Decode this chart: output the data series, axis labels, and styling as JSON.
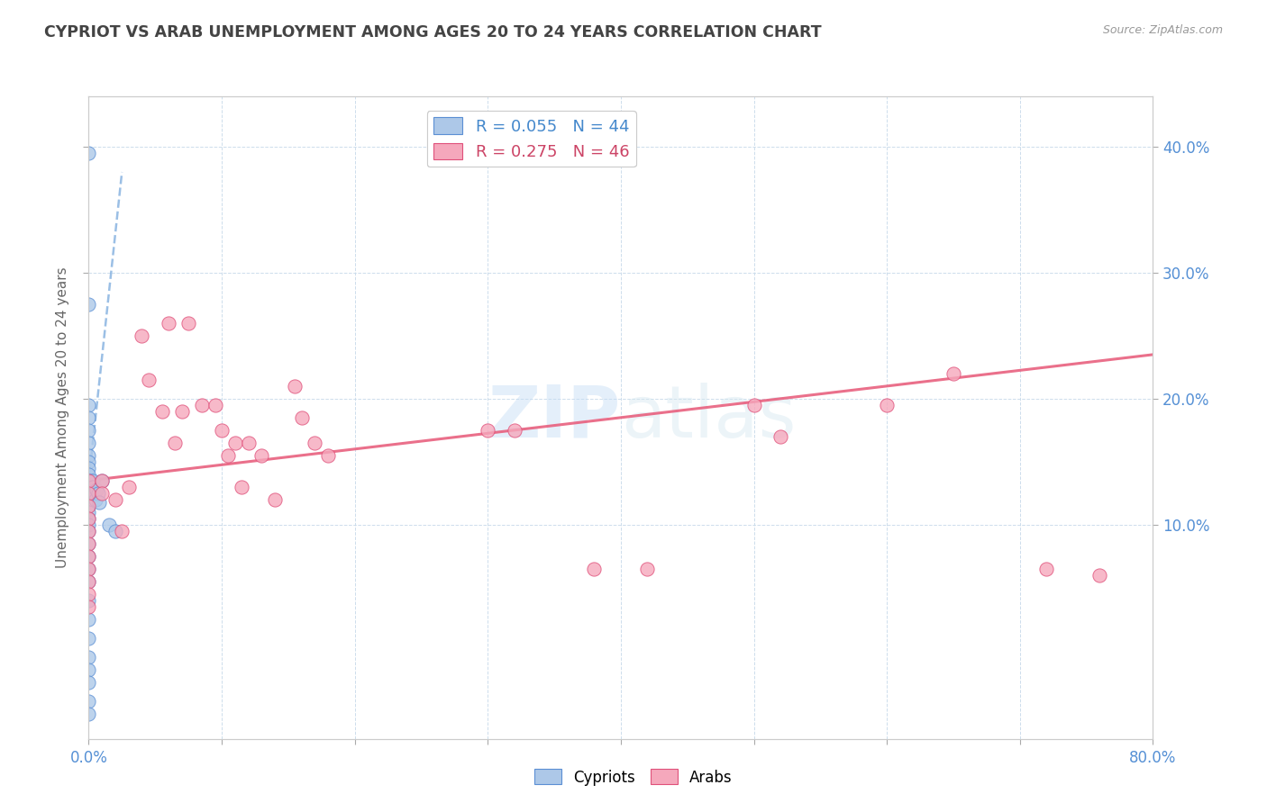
{
  "title": "CYPRIOT VS ARAB UNEMPLOYMENT AMONG AGES 20 TO 24 YEARS CORRELATION CHART",
  "source": "Source: ZipAtlas.com",
  "ylabel": "Unemployment Among Ages 20 to 24 years",
  "xlim": [
    0.0,
    0.8
  ],
  "ylim": [
    -0.07,
    0.44
  ],
  "xticks": [
    0.0,
    0.1,
    0.2,
    0.3,
    0.4,
    0.5,
    0.6,
    0.7,
    0.8
  ],
  "xticklabels": [
    "0.0%",
    "",
    "",
    "",
    "",
    "",
    "",
    "",
    "80.0%"
  ],
  "yticks": [
    0.1,
    0.2,
    0.3,
    0.4
  ],
  "yticklabels": [
    "10.0%",
    "20.0%",
    "30.0%",
    "40.0%"
  ],
  "legend_blue_label": "R = 0.055   N = 44",
  "legend_pink_label": "R = 0.275   N = 46",
  "blue_color": "#adc8e8",
  "pink_color": "#f5a8bc",
  "blue_edge_color": "#5b8fd4",
  "pink_edge_color": "#e0507a",
  "blue_line_color": "#7aaadd",
  "pink_line_color": "#e8607e",
  "watermark_zip": "ZIP",
  "watermark_atlas": "atlas",
  "cypriot_x": [
    0.0,
    0.0,
    0.0,
    0.0,
    0.0,
    0.0,
    0.0,
    0.0,
    0.0,
    0.0,
    0.0,
    0.0,
    0.0,
    0.0,
    0.0,
    0.0,
    0.0,
    0.0,
    0.0,
    0.0,
    0.0,
    0.0,
    0.0,
    0.0,
    0.0,
    0.0,
    0.0,
    0.0,
    0.0,
    0.0,
    0.0,
    0.002,
    0.002,
    0.002,
    0.003,
    0.003,
    0.004,
    0.005,
    0.006,
    0.007,
    0.008,
    0.01,
    0.015,
    0.02
  ],
  "cypriot_y": [
    0.395,
    0.275,
    0.195,
    0.185,
    0.175,
    0.165,
    0.155,
    0.15,
    0.145,
    0.14,
    0.135,
    0.13,
    0.125,
    0.12,
    0.115,
    0.11,
    0.105,
    0.1,
    0.095,
    0.085,
    0.075,
    0.065,
    0.055,
    0.04,
    0.025,
    0.01,
    -0.005,
    -0.015,
    -0.025,
    -0.04,
    -0.05,
    0.135,
    0.13,
    0.125,
    0.135,
    0.13,
    0.125,
    0.12,
    0.128,
    0.125,
    0.118,
    0.135,
    0.1,
    0.095
  ],
  "arab_x": [
    0.0,
    0.0,
    0.0,
    0.0,
    0.0,
    0.0,
    0.0,
    0.0,
    0.0,
    0.0,
    0.0,
    0.01,
    0.01,
    0.02,
    0.025,
    0.03,
    0.04,
    0.045,
    0.055,
    0.06,
    0.065,
    0.07,
    0.075,
    0.085,
    0.095,
    0.1,
    0.105,
    0.11,
    0.115,
    0.12,
    0.13,
    0.14,
    0.155,
    0.16,
    0.17,
    0.18,
    0.3,
    0.32,
    0.38,
    0.42,
    0.5,
    0.52,
    0.6,
    0.65,
    0.72,
    0.76
  ],
  "arab_y": [
    0.135,
    0.125,
    0.115,
    0.105,
    0.095,
    0.085,
    0.075,
    0.065,
    0.055,
    0.045,
    0.035,
    0.135,
    0.125,
    0.12,
    0.095,
    0.13,
    0.25,
    0.215,
    0.19,
    0.26,
    0.165,
    0.19,
    0.26,
    0.195,
    0.195,
    0.175,
    0.155,
    0.165,
    0.13,
    0.165,
    0.155,
    0.12,
    0.21,
    0.185,
    0.165,
    0.155,
    0.175,
    0.175,
    0.065,
    0.065,
    0.195,
    0.17,
    0.195,
    0.22,
    0.065,
    0.06
  ],
  "blue_trendline_x": [
    0.0,
    0.025
  ],
  "blue_trendline_y": [
    0.135,
    0.38
  ],
  "pink_trendline_x": [
    0.0,
    0.8
  ],
  "pink_trendline_y": [
    0.135,
    0.235
  ]
}
